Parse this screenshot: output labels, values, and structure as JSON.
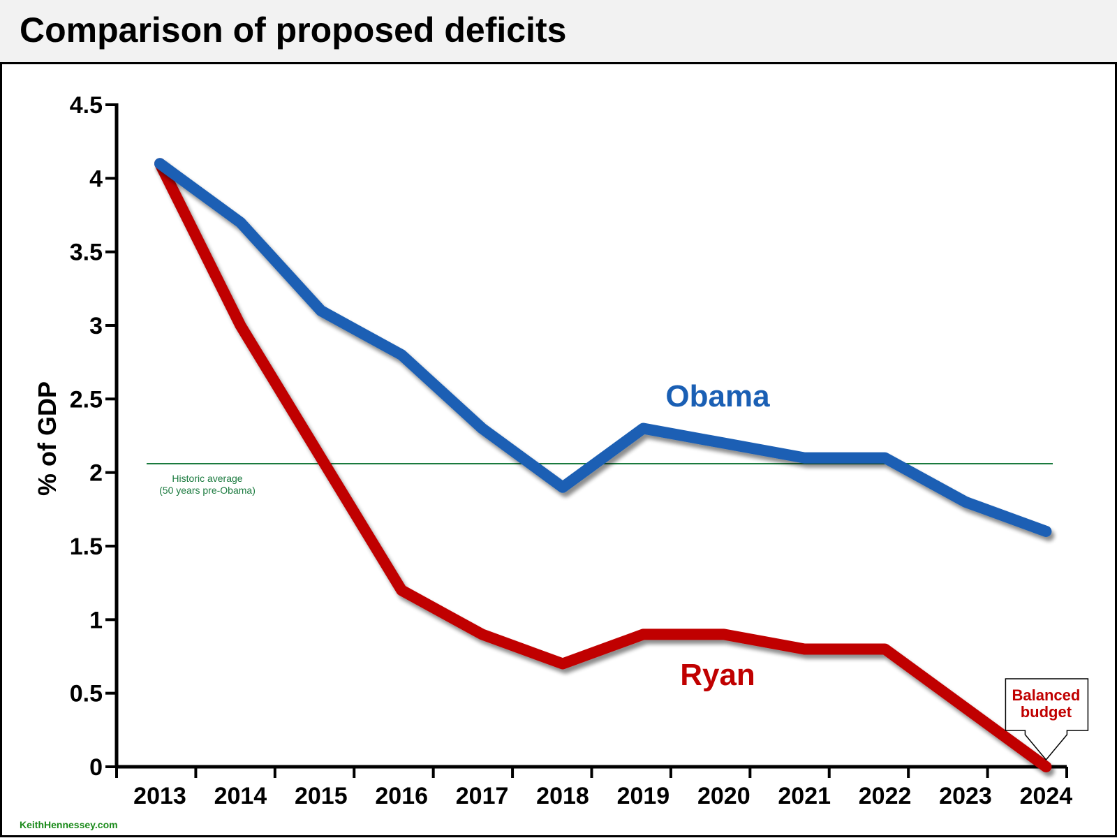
{
  "title": "Comparison of proposed deficits",
  "credit": "KeithHennessey.com",
  "chart_data": {
    "type": "line",
    "title": "Comparison of proposed deficits",
    "xlabel": "",
    "ylabel": "% of GDP",
    "x": [
      "2013",
      "2014",
      "2015",
      "2016",
      "2017",
      "2018",
      "2019",
      "2020",
      "2021",
      "2022",
      "2023",
      "2024"
    ],
    "ylim": [
      0,
      4.5
    ],
    "yticks": [
      "0",
      "0.5",
      "1",
      "1.5",
      "2",
      "2.5",
      "3",
      "3.5",
      "4",
      "4.5"
    ],
    "grid": false,
    "series": [
      {
        "name": "Obama",
        "color": "#1a5fb4",
        "values": [
          4.1,
          3.7,
          3.1,
          2.8,
          2.3,
          1.9,
          2.3,
          2.2,
          2.1,
          2.1,
          1.8,
          1.6
        ]
      },
      {
        "name": "Ryan",
        "color": "#c00000",
        "values": [
          4.1,
          3.0,
          2.1,
          1.2,
          0.9,
          0.7,
          0.9,
          0.9,
          0.8,
          0.8,
          0.4,
          0.0
        ]
      }
    ],
    "reference_line": {
      "value": 2.06,
      "color": "#1a7a3e",
      "label_line1": "Historic average",
      "label_line2": "(50 years pre-Obama)"
    },
    "callout": {
      "line1": "Balanced",
      "line2": "budget",
      "target_year": "2024",
      "target_value": 0
    }
  }
}
